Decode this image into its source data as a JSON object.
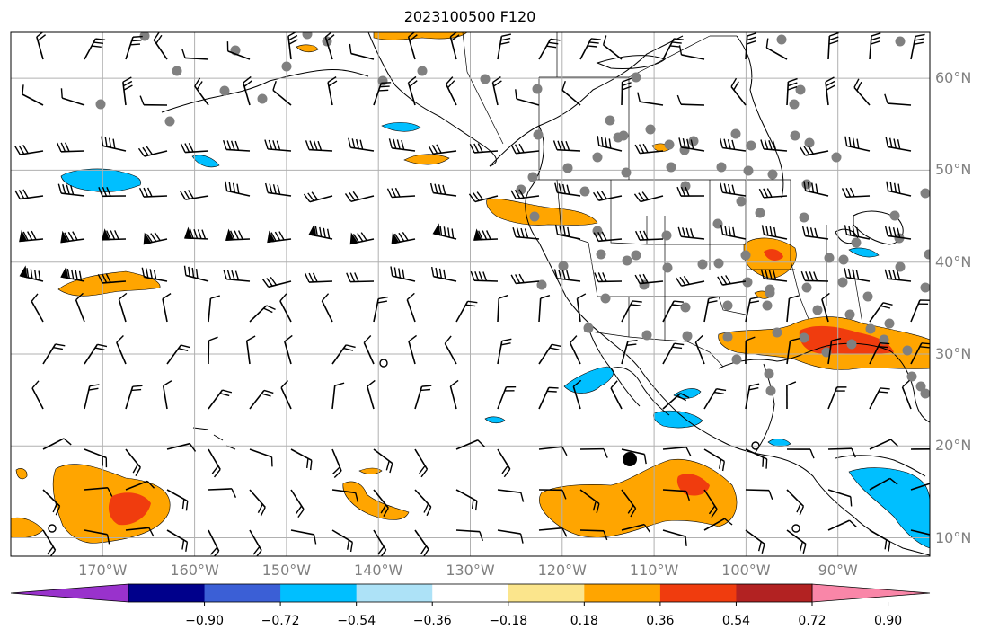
{
  "title": "2023100500 F120",
  "map": {
    "projection": "PlateCarree",
    "lon_range": [
      -180,
      -80
    ],
    "lat_range": [
      8,
      65
    ],
    "gridlines": true,
    "lat_labels": [
      "60°N",
      "50°N",
      "40°N",
      "30°N",
      "20°N",
      "10°N"
    ],
    "lon_labels": [
      "170°W",
      "160°W",
      "150°W",
      "140°W",
      "130°W",
      "120°W",
      "110°W",
      "100°W",
      "90°W"
    ],
    "shading_colors": {
      "strong_positive": "#f03c0e",
      "positive": "#ffa500",
      "negative": "#00bfff",
      "gridline": "#b0b0b0",
      "station_dot": "#808080"
    }
  },
  "colorbar": {
    "colors": [
      "#9932cc",
      "#00008b",
      "#3b5fd6",
      "#00bfff",
      "#ade2f7",
      "#ffffff",
      "#fbe58c",
      "#ffa500",
      "#f03c0e",
      "#b22222",
      "#f986a8"
    ],
    "ticks": [
      "−0.90",
      "−0.72",
      "−0.54",
      "−0.36",
      "−0.18",
      "0.18",
      "0.36",
      "0.54",
      "0.72",
      "0.90"
    ]
  }
}
